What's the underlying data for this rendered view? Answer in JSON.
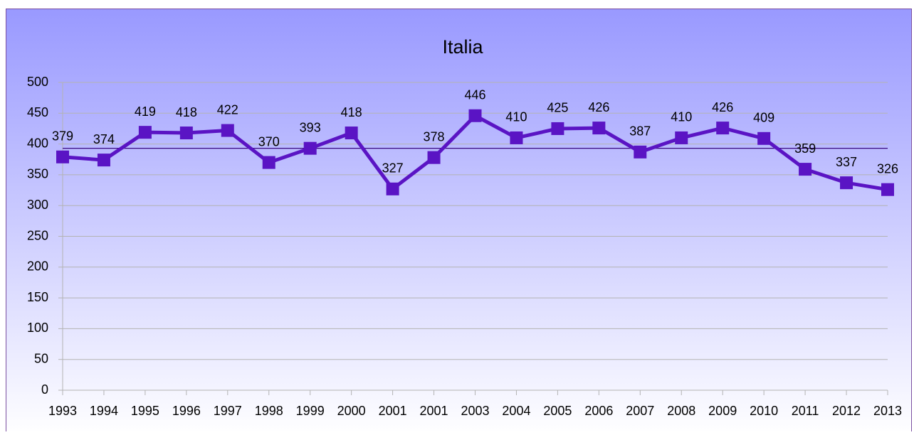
{
  "chart_data": {
    "type": "line",
    "title": "Italia",
    "categories": [
      "1993",
      "1994",
      "1995",
      "1996",
      "1997",
      "1998",
      "1999",
      "2000",
      "2001",
      "2001",
      "2003",
      "2004",
      "2005",
      "2006",
      "2007",
      "2008",
      "2009",
      "2010",
      "2011",
      "2012",
      "2013"
    ],
    "series": [
      {
        "color": "#5a14c4",
        "values": [
          379,
          374,
          419,
          418,
          422,
          370,
          393,
          418,
          327,
          378,
          446,
          410,
          425,
          426,
          387,
          410,
          426,
          409,
          359,
          337,
          326
        ]
      }
    ],
    "reference_line": {
      "value": 393,
      "color": "#3a0a80"
    },
    "ylim": [
      0,
      500
    ],
    "yticks": [
      0,
      50,
      100,
      150,
      200,
      250,
      300,
      350,
      400,
      450,
      500
    ],
    "grid": true
  }
}
